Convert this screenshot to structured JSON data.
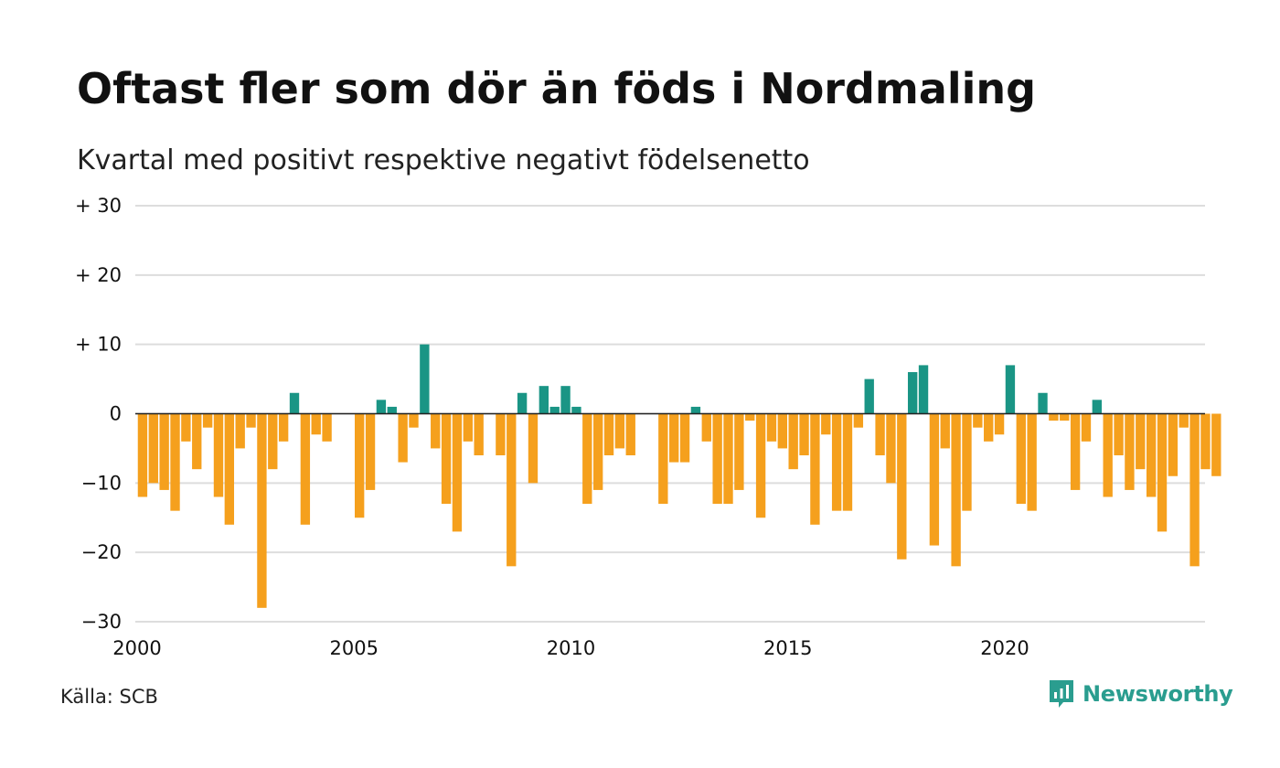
{
  "title": "Oftast fler som dör än föds i Nordmaling",
  "subtitle": "Kvartal med positivt respektive negativt födelsenetto",
  "source": "Källa: SCB",
  "brand": {
    "name": "Newsworthy",
    "logo_icon": "bar-chart-speech-bubble-icon"
  },
  "colors": {
    "positive": "#1a9585",
    "negative": "#f5a01d",
    "grid": "#dddddd",
    "axis": "#222222",
    "brand": "#2a9d8f"
  },
  "chart_data": {
    "type": "bar",
    "title": "Oftast fler som dör än föds i Nordmaling",
    "subtitle": "Kvartal med positivt respektive negativt födelsenetto",
    "xlabel": "",
    "ylabel": "",
    "ylim": [
      -30,
      30
    ],
    "yticks": [
      30,
      20,
      10,
      0,
      -10,
      -20,
      -30
    ],
    "ytick_labels": [
      "+ 30",
      "+ 20",
      "+ 10",
      "0",
      "−10",
      "−20",
      "−30"
    ],
    "xticks": [
      2000,
      2005,
      2010,
      2015,
      2020
    ],
    "xtick_labels": [
      "2000",
      "2005",
      "2010",
      "2015",
      "2020"
    ],
    "x_start": "2000 Q1",
    "grid": true,
    "series": [
      {
        "values": [
          -12,
          -10,
          -11,
          -14,
          -4,
          -8,
          -2,
          -12,
          -16,
          -5,
          -2,
          -28,
          -8,
          -4,
          3,
          -16,
          -3,
          -4,
          0,
          0,
          -15,
          -11,
          2,
          1,
          -7,
          -2,
          10,
          -5,
          -13,
          -17,
          -4,
          -6,
          0,
          -6,
          -22,
          3,
          -10,
          4,
          1,
          4,
          1,
          -13,
          -11,
          -6,
          -5,
          -6,
          0,
          0,
          -13,
          -7,
          -7,
          1,
          -4,
          -13,
          -13,
          -11,
          -1,
          -15,
          -4,
          -5,
          -8,
          -6,
          -16,
          -3,
          -14,
          -14,
          -2,
          5,
          -6,
          -10,
          -21,
          6,
          7,
          -19,
          -5,
          -22,
          -14,
          -2,
          -4,
          -3,
          7,
          -13,
          -14,
          3,
          -1,
          -1,
          -11,
          -4,
          2,
          -12,
          -6,
          -11,
          -8,
          -12,
          -17,
          -9,
          -2,
          -22,
          -8,
          -9
        ]
      }
    ]
  }
}
